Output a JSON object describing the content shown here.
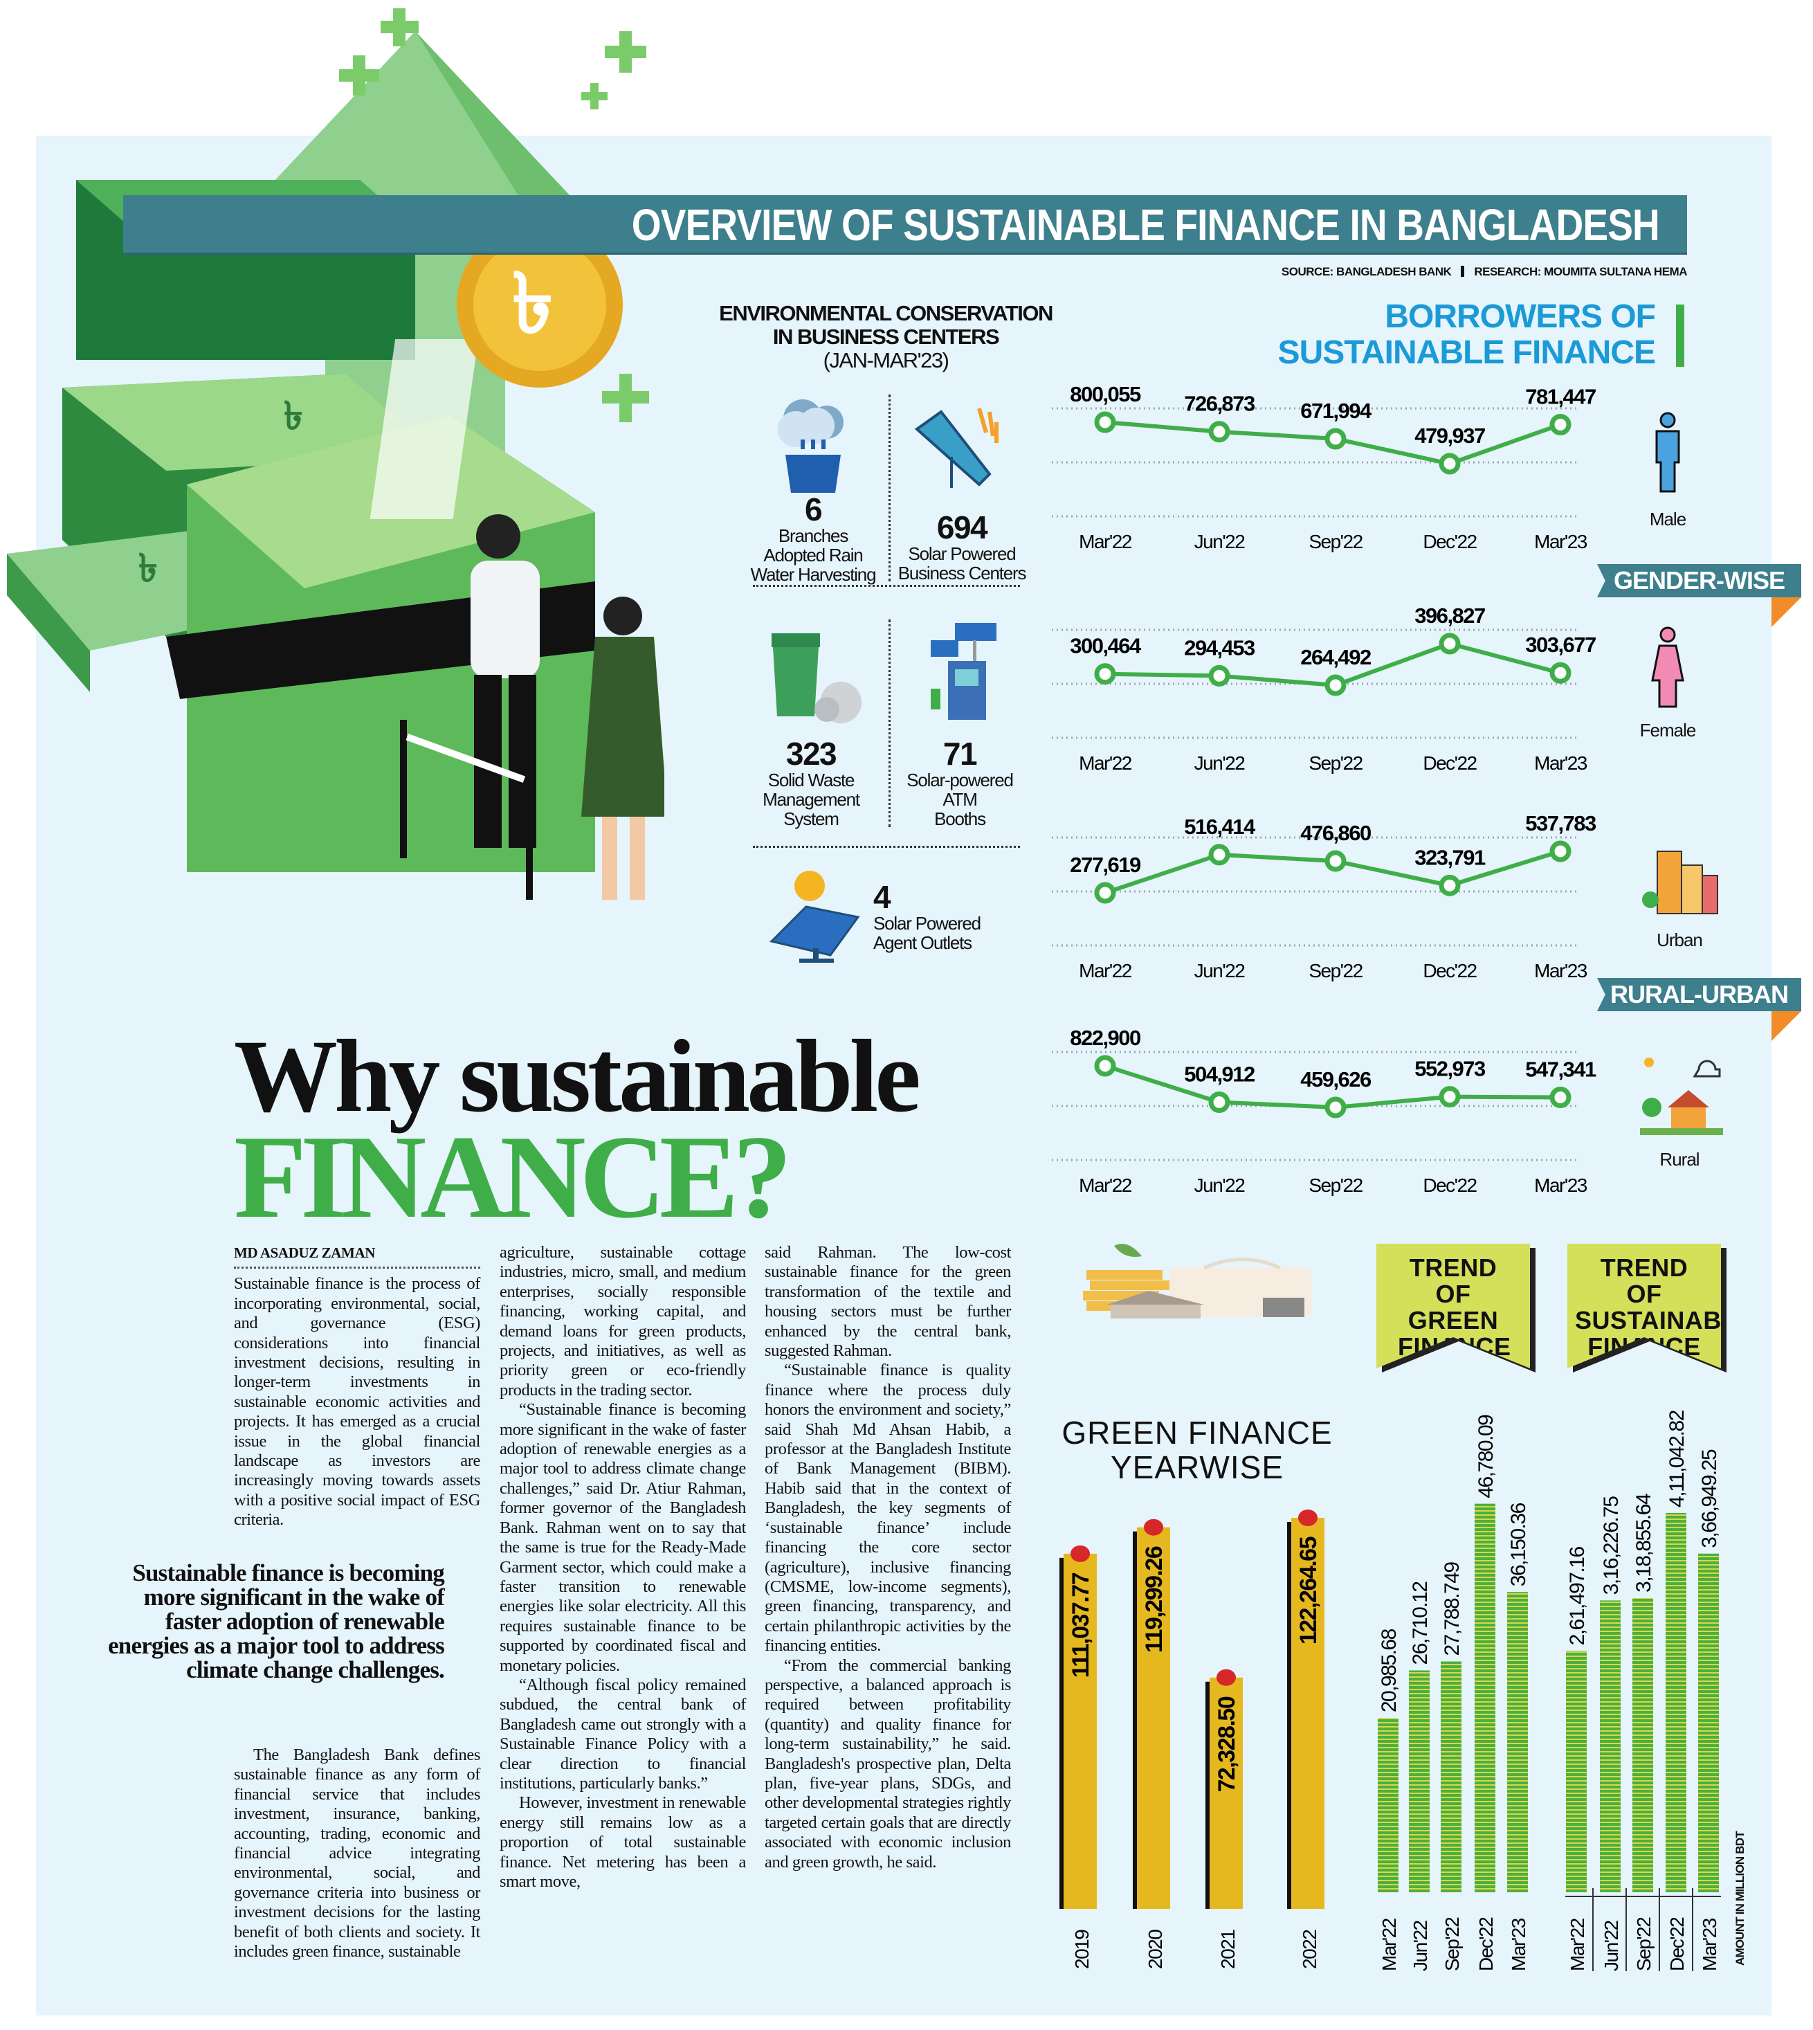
{
  "title": "OVERVIEW OF SUSTAINABLE FINANCE IN BANGLADESH",
  "source": "SOURCE: BANGLADESH BANK",
  "research": "RESEARCH: MOUMITA SULTANA HEMA",
  "env": {
    "title_line1": "ENVIRONMENTAL CONSERVATION",
    "title_line2": "IN BUSINESS CENTERS",
    "period": "(JAN-MAR'23)",
    "items": [
      {
        "value": "6",
        "label": "Branches\nAdopted Rain\nWater Harvesting",
        "icon": "rain-bucket-icon"
      },
      {
        "value": "694",
        "label": "Solar Powered\nBusiness Centers",
        "icon": "solar-panel-icon"
      },
      {
        "value": "323",
        "label": "Solid Waste\nManagement\nSystem",
        "icon": "waste-bin-icon"
      },
      {
        "value": "71",
        "label": "Solar-powered\nATM\nBooths",
        "icon": "solar-atm-icon"
      },
      {
        "value": "4",
        "label": "Solar Powered\nAgent Outlets",
        "icon": "solar-sun-panel-icon"
      }
    ]
  },
  "borrowers": {
    "title_line1": "BORROWERS OF",
    "title_line2": "SUSTAINABLE FINANCE",
    "tab_gender": "GENDER-WISE",
    "tab_area": "RURAL-URBAN",
    "accent": "#1a9ad6",
    "line_color": "#3fae48"
  },
  "headline": {
    "line1": "Why sustainable",
    "line2": "FINANCE?"
  },
  "article": {
    "byline": "MD ASADUZ ZAMAN",
    "pull_quote": "Sustainable finance is becoming more significant in the wake of faster adoption of renewable energies as a major tool to address climate change challenges.",
    "col1_p1": "Sustainable finance is the process of incorporating environmental, social, and governance (ESG) considerations into financial investment decisions, resulting in longer-term investments in sustainable economic activities and projects. It has emerged as a crucial issue in the global financial landscape as investors are increasingly moving towards assets with a positive social impact of ESG criteria.",
    "col1_p2": "The Bangladesh Bank defines sustainable finance as any form of financial service that includes investment, insurance, banking, accounting, trading, economic and financial advice integrating environmental, social, and governance criteria into business or investment decisions for the lasting benefit of both clients and society. It includes green finance, sustainable",
    "col2_p1": "agriculture, sustainable cottage industries, micro, small, and medium enterprises, socially responsible financing, working capital, and demand loans for green products, projects, and initiatives, as well as priority green or eco-friendly products in the trading sector.",
    "col2_p2": "“Sustainable finance is becoming more significant in the wake of faster adoption of renewable energies as a major tool to address climate change challenges,” said Dr. Atiur Rahman, former governor of the Bangladesh Bank. Rahman went on to say that the same is true for the Ready-Made Garment sector, which could make a faster transition to renewable energies like solar electricity. All this requires sustainable finance to be supported by coordinated fiscal and monetary policies.",
    "col2_p3": "“Although fiscal policy remained subdued, the central bank of Bangladesh came out strongly with a Sustainable Finance Policy with a clear direction to financial institutions, particularly banks.”",
    "col2_p4": "However, investment in renewable energy still remains low as a proportion of total sustainable finance. Net metering has been a smart move,",
    "col3_p1": "said Rahman. The low-cost sustainable finance for the green transformation of the textile and housing sectors must be further enhanced by the central bank, suggested Rahman.",
    "col3_p2": "“Sustainable finance is quality finance where the process duly honors the environment and society,” said Shah Md Ahsan Habib, a professor at the Bangladesh Institute of Bank Management (BIBM). Habib said that in the context of Bangladesh, the key segments of ‘sustainable finance’ include financing the core sector (agriculture), inclusive financing (CMSME, low-income segments), green financing, transparency, and certain philanthropic activities by the financing entities.",
    "col3_p3": "“From the commercial banking perspective, a balanced approach is required between profitability (quantity) and quality finance for long-term sustainability,” he said. Bangladesh's prospective plan, Delta plan, five-year plans, SDGs, and other developmental strategies rightly targeted certain goals that are directly associated with economic inclusion and green growth, he said."
  },
  "chart_data": [
    {
      "type": "line",
      "label": "Male",
      "icon": "male-icon",
      "x": [
        "Mar'22",
        "Jun'22",
        "Sep'22",
        "Dec'22",
        "Mar'23"
      ],
      "y": [
        800055,
        726873,
        671994,
        479937,
        781447
      ],
      "y_labels": [
        "800,055",
        "726,873",
        "671,994",
        "479,937",
        "781,447"
      ],
      "grid": true
    },
    {
      "type": "line",
      "label": "Female",
      "icon": "female-icon",
      "x": [
        "Mar'22",
        "Jun'22",
        "Sep'22",
        "Dec'22",
        "Mar'23"
      ],
      "y": [
        300464,
        294453,
        264492,
        396827,
        303677
      ],
      "y_labels": [
        "300,464",
        "294,453",
        "264,492",
        "396,827",
        "303,677"
      ],
      "grid": true
    },
    {
      "type": "line",
      "label": "Urban",
      "icon": "urban-buildings-icon",
      "x": [
        "Mar'22",
        "Jun'22",
        "Sep'22",
        "Dec'22",
        "Mar'23"
      ],
      "y": [
        277619,
        516414,
        476860,
        323791,
        537783
      ],
      "y_labels": [
        "277,619",
        "516,414",
        "476,860",
        "323,791",
        "537,783"
      ],
      "grid": true
    },
    {
      "type": "line",
      "label": "Rural",
      "icon": "rural-house-icon",
      "x": [
        "Mar'22",
        "Jun'22",
        "Sep'22",
        "Dec'22",
        "Mar'23"
      ],
      "y": [
        822900,
        504912,
        459626,
        552973,
        547341
      ],
      "y_labels": [
        "822,900",
        "504,912",
        "459,626",
        "552,973",
        "547,341"
      ],
      "grid": true
    },
    {
      "type": "bar",
      "title_line1": "GREEN FINANCE",
      "title_line2": "YEARWISE",
      "categories": [
        "2019",
        "2020",
        "2021",
        "2022"
      ],
      "values": [
        111037.77,
        119299.26,
        72328.5,
        122264.65
      ],
      "value_labels": [
        "111,037.77",
        "119,299.26",
        "72,328.50",
        "122,264.65"
      ],
      "color": "#e6b820",
      "marker_color": "#d62828"
    },
    {
      "type": "bar",
      "title": "TREND OF GREEN FINANCE",
      "categories": [
        "Mar'22",
        "Jun'22",
        "Sep'22",
        "Dec'22",
        "Mar'23"
      ],
      "values": [
        20985.68,
        26710.12,
        27788.749,
        46780.09,
        36150.36
      ],
      "value_labels": [
        "20,985.68",
        "26,710.12",
        "27,788.749",
        "46,780.09",
        "36,150.36"
      ],
      "color": "#4caf3f"
    },
    {
      "type": "bar",
      "title": "TREND OF SUSTAINABLE FINANCE",
      "categories": [
        "Mar'22",
        "Jun'22",
        "Sep'22",
        "Dec'22",
        "Mar'23"
      ],
      "values": [
        261497.16,
        316226.75,
        318855.64,
        411042.82,
        366949.25
      ],
      "value_labels": [
        "2,61,497.16",
        "3,16,226.75",
        "3,18,855.64",
        "4,11,042.82",
        "3,66,949.25"
      ],
      "color": "#4caf3f",
      "unit_note": "AMOUNT IN MILLION BDT"
    }
  ]
}
